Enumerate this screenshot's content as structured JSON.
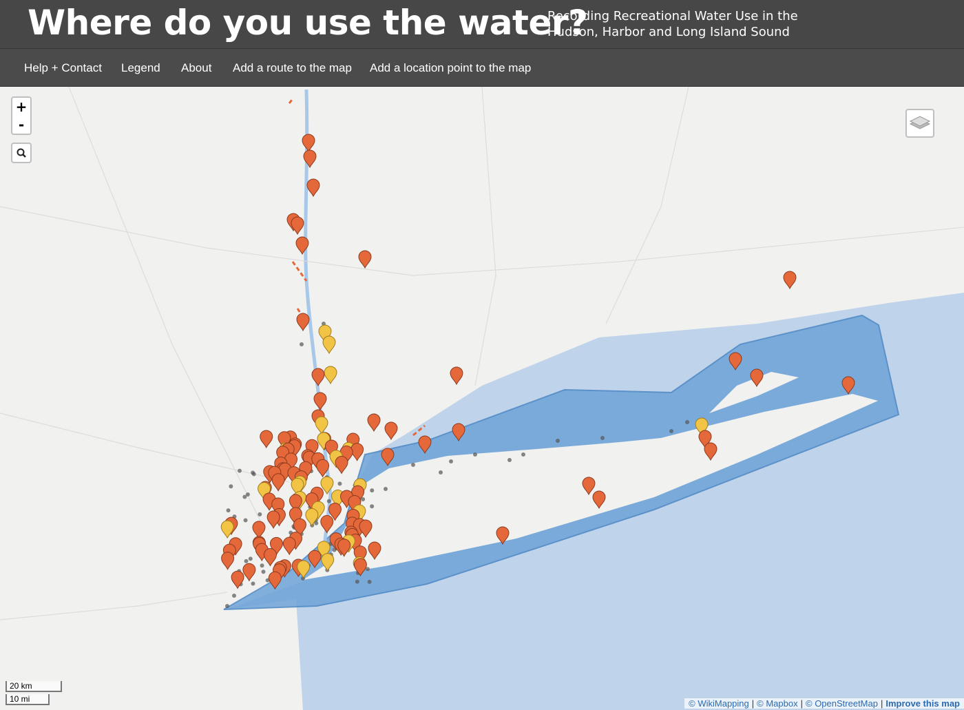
{
  "header": {
    "title": "Where do you use the water?",
    "subtitle_lines": [
      "Recording Recreational Water Use in the",
      "Hudson, Harbor and Long Island Sound"
    ]
  },
  "nav": [
    "Help + Contact",
    "Legend",
    "About",
    "Add a route to the map",
    "Add a location point to the map"
  ],
  "map": {
    "zoom_in": "+",
    "zoom_out": "-",
    "scale": [
      "20 km",
      "10 mi"
    ],
    "attribution": [
      "© WikiMapping",
      "|",
      "© Mapbox",
      "|",
      "© OpenStreetMap",
      "|",
      "Improve this map"
    ]
  }
}
